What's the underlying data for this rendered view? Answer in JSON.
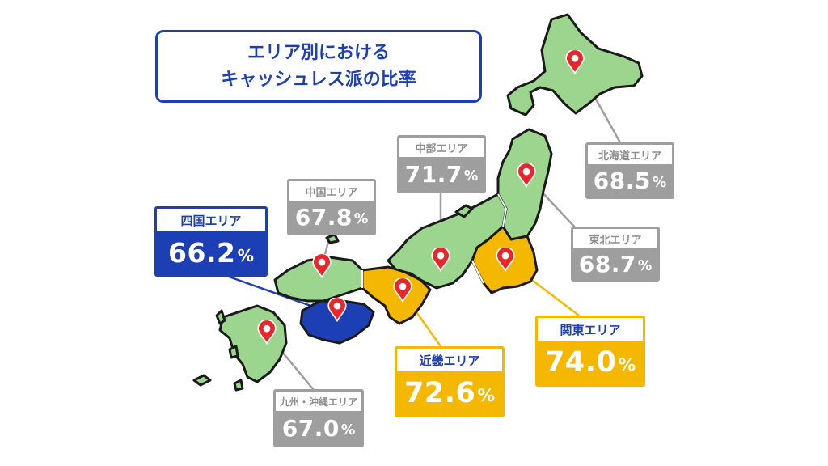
{
  "title": {
    "line1": "エリア別における",
    "line2": "キャッシュレス派の比率"
  },
  "colors": {
    "green": "#9cd58d",
    "yellow": "#f5b800",
    "blue": "#1d3fb5",
    "gray": "#9e9e9e",
    "pin": "#e8262b"
  },
  "regions": {
    "hokkaido": {
      "label": "北海道エリア",
      "value": "68.5",
      "unit": "%"
    },
    "tohoku": {
      "label": "東北エリア",
      "value": "68.7",
      "unit": "%"
    },
    "kanto": {
      "label": "関東エリア",
      "value": "74.0",
      "unit": "%"
    },
    "chubu": {
      "label": "中部エリア",
      "value": "71.7",
      "unit": "%"
    },
    "kinki": {
      "label": "近畿エリア",
      "value": "72.6",
      "unit": "%"
    },
    "chugoku": {
      "label": "中国エリア",
      "value": "67.8",
      "unit": "%"
    },
    "shikoku": {
      "label": "四国エリア",
      "value": "66.2",
      "unit": "%"
    },
    "kyushu": {
      "label": "九州・沖縄エリア",
      "value": "67.0",
      "unit": "%"
    }
  }
}
